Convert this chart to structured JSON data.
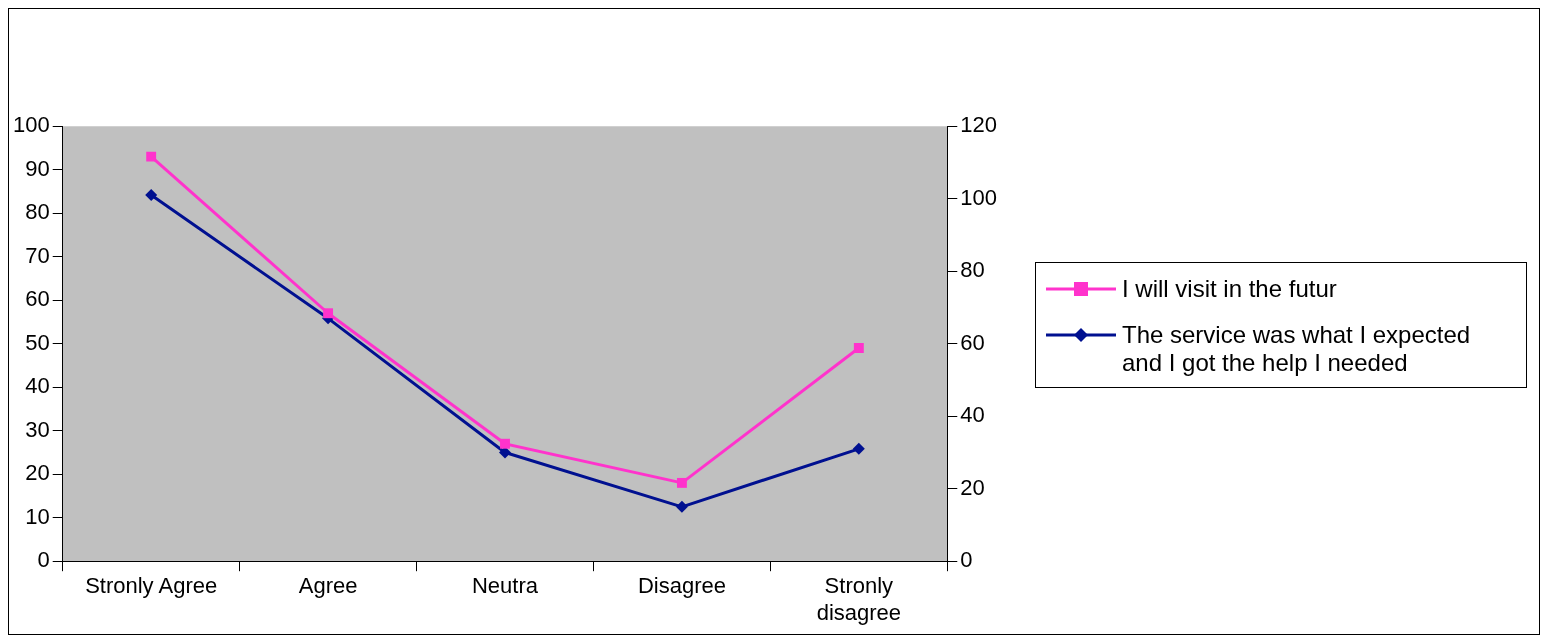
{
  "chart_data": {
    "type": "line",
    "categories": [
      "Stronly Agree",
      "Agree",
      "Neutra",
      "Disagree",
      "Stronly disagree"
    ],
    "series": [
      {
        "name": "I will visit in the futur",
        "color": "#ff33cc",
        "marker": "square",
        "values": [
          93,
          57,
          27,
          18,
          49
        ]
      },
      {
        "name": "The service was what I expected and I got the help I needed",
        "color": "#001090",
        "marker": "diamond",
        "axis": "y2",
        "values": [
          101,
          67,
          30,
          15,
          31
        ]
      }
    ],
    "ylim": [
      0,
      100
    ],
    "yticks": [
      0,
      10,
      20,
      30,
      40,
      50,
      60,
      70,
      80,
      90,
      100
    ],
    "y2lim": [
      0,
      120
    ],
    "y2ticks": [
      0,
      20,
      40,
      60,
      80,
      100,
      120
    ],
    "grid": false,
    "legend": "right"
  }
}
